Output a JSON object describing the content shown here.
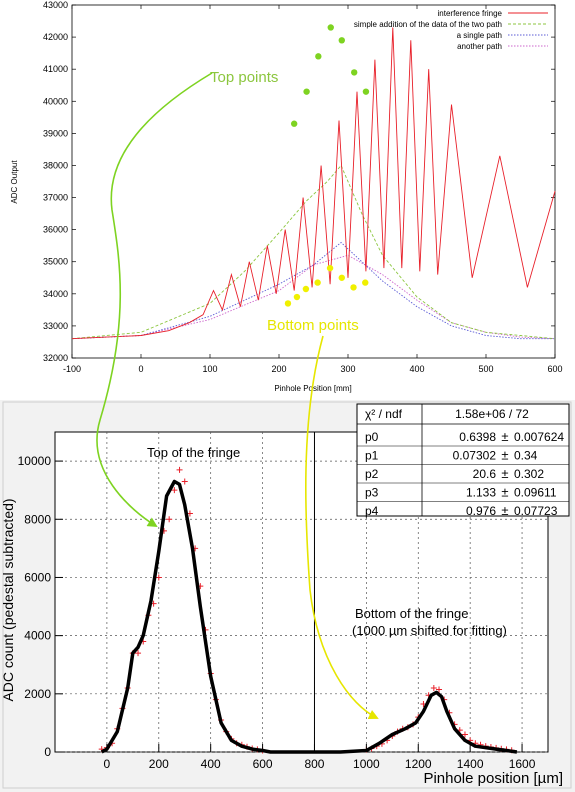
{
  "chart_data": [
    {
      "type": "line",
      "xlabel": "Pinhole Position [mm]",
      "ylabel": "ADC Output",
      "xlim": [
        -100,
        600
      ],
      "ylim": [
        32000,
        43000
      ],
      "xticks": [
        -100,
        0,
        100,
        200,
        300,
        400,
        500,
        600
      ],
      "yticks": [
        32000,
        33000,
        34000,
        35000,
        36000,
        37000,
        38000,
        39000,
        40000,
        41000,
        42000,
        43000
      ],
      "legend_position": "top-right",
      "series": [
        {
          "name": "interference fringe",
          "color": "#e8202a",
          "style": "solid",
          "x": [
            -100,
            -50,
            0,
            40,
            70,
            90,
            105,
            118,
            131,
            144,
            157,
            170,
            183,
            196,
            209,
            222,
            235,
            248,
            261,
            274,
            287,
            300,
            313,
            326,
            339,
            352,
            365,
            378,
            391,
            404,
            417,
            430,
            450,
            480,
            520,
            560,
            600
          ],
          "y": [
            32600,
            32650,
            32700,
            32850,
            33100,
            33350,
            34100,
            33500,
            34600,
            33600,
            35000,
            33800,
            35500,
            34000,
            36000,
            34100,
            37000,
            34200,
            38000,
            34300,
            39400,
            34500,
            40300,
            34700,
            41300,
            34800,
            42300,
            34800,
            41900,
            34700,
            41000,
            34600,
            39900,
            34500,
            38300,
            34200,
            37200
          ]
        },
        {
          "name": "simple addition of the data of the two path",
          "color": "#8cc63f",
          "style": "dashed",
          "x": [
            -100,
            0,
            100,
            150,
            200,
            240,
            270,
            290,
            300,
            320,
            350,
            400,
            450,
            500,
            550,
            600
          ],
          "y": [
            32600,
            32800,
            33700,
            34700,
            35900,
            36900,
            37500,
            38000,
            37500,
            36500,
            35200,
            33900,
            33100,
            32800,
            32700,
            32600
          ],
          "points": [
            {
              "x": 222,
              "y": 39300
            },
            {
              "x": 240,
              "y": 40300
            },
            {
              "x": 257,
              "y": 41400
            },
            {
              "x": 275,
              "y": 42300
            },
            {
              "x": 291,
              "y": 41900
            },
            {
              "x": 309,
              "y": 40900
            },
            {
              "x": 326,
              "y": 40300
            }
          ]
        },
        {
          "name": "a single path",
          "color": "#5b5bd6",
          "style": "dotted",
          "x": [
            -100,
            0,
            100,
            200,
            250,
            290,
            320,
            350,
            400,
            450,
            500,
            550,
            600
          ],
          "y": [
            32600,
            32700,
            33300,
            34300,
            34900,
            35600,
            35000,
            34400,
            33600,
            33000,
            32700,
            32600,
            32600
          ],
          "points": [
            {
              "x": 213,
              "y": 33700
            },
            {
              "x": 226,
              "y": 33900
            },
            {
              "x": 239,
              "y": 34150
            },
            {
              "x": 256,
              "y": 34350
            },
            {
              "x": 274,
              "y": 34800
            },
            {
              "x": 291,
              "y": 34500
            },
            {
              "x": 308,
              "y": 34200
            },
            {
              "x": 325,
              "y": 34350
            }
          ]
        },
        {
          "name": "another path",
          "color": "#cc66cc",
          "style": "dotted",
          "x": [
            -100,
            0,
            100,
            200,
            250,
            300,
            350,
            400,
            450,
            500,
            550,
            600
          ],
          "y": [
            32600,
            32700,
            33200,
            34100,
            34900,
            35200,
            34600,
            33800,
            33100,
            32800,
            32650,
            32600
          ]
        }
      ],
      "annotations": [
        {
          "text": "Top points",
          "color": "#8cc63f"
        },
        {
          "text": "Bottom points",
          "color": "#e6e600"
        }
      ]
    },
    {
      "type": "line",
      "xlabel": "Pinhole position [µm]",
      "ylabel": "ADC count (pedestal subtracted)",
      "xlim": [
        -200,
        1700
      ],
      "ylim": [
        0,
        11000
      ],
      "xticks": [
        0,
        200,
        400,
        600,
        800,
        1000,
        1200,
        1400,
        1600
      ],
      "yticks": [
        0,
        2000,
        4000,
        6000,
        8000,
        10000
      ],
      "grid": true,
      "vline_x": 800,
      "fit_curve": {
        "color": "#000000",
        "x": [
          -20,
          0,
          40,
          80,
          100,
          120,
          140,
          170,
          200,
          230,
          260,
          280,
          300,
          330,
          360,
          400,
          440,
          480,
          520,
          560,
          600,
          630,
          700,
          800,
          900,
          1000,
          1050,
          1100,
          1150,
          1190,
          1220,
          1250,
          1270,
          1290,
          1310,
          1340,
          1380,
          1420,
          1460,
          1500,
          1540,
          1580
        ],
        "y": [
          0,
          100,
          700,
          2200,
          3400,
          3600,
          4000,
          5200,
          6900,
          8800,
          9300,
          9200,
          8500,
          7000,
          5000,
          2600,
          1000,
          400,
          200,
          100,
          50,
          0,
          0,
          0,
          0,
          50,
          300,
          600,
          800,
          1000,
          1400,
          1950,
          2050,
          1900,
          1400,
          800,
          400,
          200,
          150,
          100,
          50,
          0
        ]
      },
      "points": {
        "color": "#e8202a",
        "x": [
          -20,
          0,
          20,
          40,
          60,
          80,
          100,
          120,
          140,
          160,
          180,
          200,
          220,
          240,
          260,
          280,
          300,
          320,
          340,
          360,
          380,
          400,
          420,
          440,
          460,
          480,
          500,
          520,
          540,
          560,
          580,
          600,
          1000,
          1020,
          1040,
          1060,
          1080,
          1100,
          1120,
          1140,
          1160,
          1180,
          1200,
          1220,
          1240,
          1260,
          1280,
          1300,
          1320,
          1340,
          1360,
          1380,
          1400,
          1420,
          1440,
          1460,
          1480,
          1500,
          1520,
          1540,
          1560
        ],
        "y": [
          100,
          150,
          300,
          800,
          1500,
          2200,
          3400,
          3400,
          3800,
          4700,
          5100,
          6000,
          7600,
          8000,
          9000,
          9700,
          9300,
          8200,
          7000,
          5700,
          4200,
          2700,
          1800,
          1100,
          700,
          450,
          300,
          250,
          180,
          120,
          90,
          50,
          80,
          120,
          200,
          280,
          400,
          550,
          700,
          800,
          850,
          950,
          1200,
          1650,
          1950,
          2200,
          2150,
          1800,
          1350,
          950,
          750,
          600,
          400,
          300,
          250,
          200,
          170,
          140,
          110,
          90,
          60
        ]
      },
      "annotations": [
        {
          "text": "Top of the fringe"
        },
        {
          "text": "Bottom of the fringe"
        },
        {
          "text": "(1000 µm shifted for fitting)"
        }
      ],
      "fit_box": {
        "header": [
          "χ² / ndf",
          "1.58e+06 / 72"
        ],
        "rows": [
          {
            "name": "p0",
            "value": "0.6398",
            "error": "0.007624"
          },
          {
            "name": "p1",
            "value": "0.07302",
            "error": "0.34"
          },
          {
            "name": "p2",
            "value": "20.6",
            "error": "0.302"
          },
          {
            "name": "p3",
            "value": "1.133",
            "error": "0.09611"
          },
          {
            "name": "p4",
            "value": "0.976",
            "error": "0.07723"
          }
        ],
        "pm_symbol": "±"
      }
    }
  ]
}
